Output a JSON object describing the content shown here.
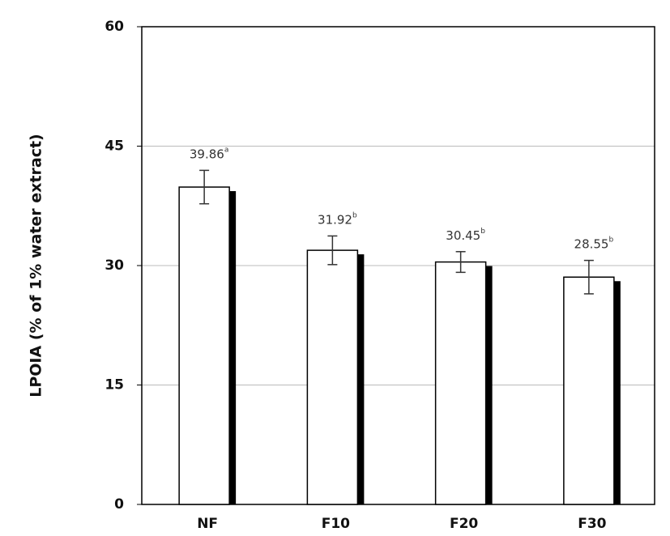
{
  "chart_data": {
    "type": "bar",
    "y_label": "LPOIA (% of 1% water extract)",
    "categories": [
      "NF",
      "F10",
      "F20",
      "F30"
    ],
    "values": [
      39.86,
      31.92,
      30.45,
      28.55
    ],
    "errors": [
      2.1,
      1.8,
      1.3,
      2.1
    ],
    "value_labels": [
      "39.86",
      "31.92",
      "30.45",
      "28.55"
    ],
    "superscripts": [
      "a",
      "b",
      "b",
      "b"
    ],
    "color": "#ffffff",
    "shadow_color": "#000000",
    "ylim": [
      0,
      60
    ],
    "yticks": [
      0,
      15,
      30,
      45,
      60
    ],
    "grid": true
  }
}
